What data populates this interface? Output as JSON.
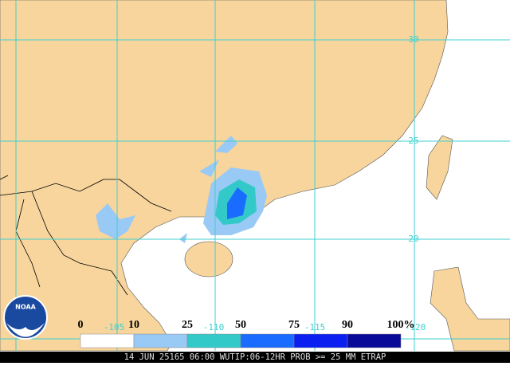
{
  "map": {
    "lat_labels": [
      "30",
      "25",
      "20"
    ],
    "lon_labels": [
      "-105",
      "-110",
      "-115",
      "-120"
    ],
    "legend": {
      "labels": [
        "0",
        "10",
        "25",
        "50",
        "75",
        "90",
        "100%"
      ],
      "colors": [
        "#ffffff",
        "#99c9f5",
        "#33c9c9",
        "#1a6bff",
        "#0a1ff0",
        "#0a0a99"
      ]
    },
    "logo": "NOAA",
    "caption": "14 JUN 25165 06:00 WUTIP:06-12HR PROB >= 25 MM ETRAP"
  }
}
